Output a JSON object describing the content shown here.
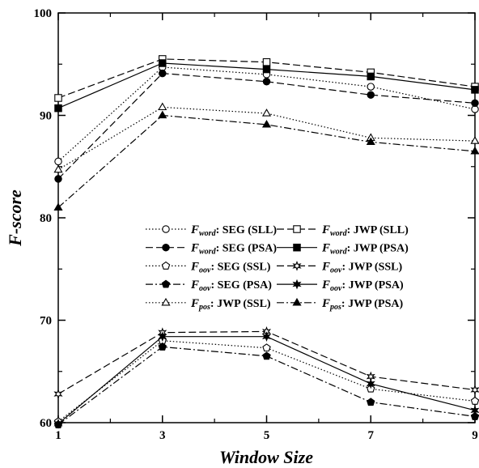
{
  "chart_data": {
    "type": "line",
    "title": "",
    "xlabel": "Window Size",
    "ylabel": "F-score",
    "x": [
      1,
      3,
      5,
      7,
      9
    ],
    "xticks": [
      "1",
      "3",
      "5",
      "7",
      "9"
    ],
    "yticks": [
      "60",
      "70",
      "80",
      "90",
      "100"
    ],
    "xlim": [
      1,
      9
    ],
    "ylim": [
      60,
      100
    ],
    "grid": false,
    "legend_position": "center-right",
    "series": [
      {
        "name": "F_word: SEG (SLL)",
        "symbol": "F",
        "sub": "word",
        "suffix": ": SEG (SLL)",
        "marker": "circle-open",
        "dash": "dotted",
        "values": [
          85.5,
          94.7,
          94.0,
          92.8,
          90.6
        ]
      },
      {
        "name": "F_word: SEG (PSA)",
        "symbol": "F",
        "sub": "word",
        "suffix": ": SEG (PSA)",
        "marker": "circle-filled",
        "dash": "dashed",
        "values": [
          83.8,
          94.1,
          93.3,
          92.0,
          91.2
        ]
      },
      {
        "name": "F_oov: SEG (SSL)",
        "symbol": "F",
        "sub": "oov",
        "suffix": ": SEG (SSL)",
        "marker": "pentagon-open",
        "dash": "dotted",
        "values": [
          60.1,
          68.0,
          67.3,
          63.3,
          62.1
        ]
      },
      {
        "name": "F_oov: SEG (PSA)",
        "symbol": "F",
        "sub": "oov",
        "suffix": ": SEG (PSA)",
        "marker": "pentagon-filled",
        "dash": "dashdot",
        "values": [
          59.8,
          67.4,
          66.5,
          62.0,
          60.6
        ]
      },
      {
        "name": "F_word: JWP (SLL)",
        "symbol": "F",
        "sub": "word",
        "suffix": ": JWP (SLL)",
        "marker": "square-open",
        "dash": "dashed",
        "values": [
          91.7,
          95.5,
          95.2,
          94.2,
          92.8
        ]
      },
      {
        "name": "F_word: JWP (PSA)",
        "symbol": "F",
        "sub": "word",
        "suffix": ": JWP (PSA)",
        "marker": "square-filled",
        "dash": "solid",
        "values": [
          90.7,
          95.1,
          94.5,
          93.8,
          92.5
        ]
      },
      {
        "name": "F_oov: JWP (SSL)",
        "symbol": "F",
        "sub": "oov",
        "suffix": ": JWP (SSL)",
        "marker": "star-open",
        "dash": "dashed",
        "values": [
          62.8,
          68.8,
          68.9,
          64.5,
          63.2
        ]
      },
      {
        "name": "F_oov: JWP (PSA)",
        "symbol": "F",
        "sub": "oov",
        "suffix": ": JWP (PSA)",
        "marker": "star-filled",
        "dash": "solid",
        "values": [
          59.9,
          68.4,
          68.4,
          63.8,
          61.2
        ]
      },
      {
        "name": "F_pos: JWP (SSL)",
        "symbol": "F",
        "sub": "pos",
        "suffix": ": JWP (SSL)",
        "marker": "triangle-open",
        "dash": "dotted",
        "values": [
          84.7,
          90.8,
          90.2,
          87.8,
          87.5
        ]
      },
      {
        "name": "F_pos: JWP (PSA)",
        "symbol": "F",
        "sub": "pos",
        "suffix": ": JWP (PSA)",
        "marker": "triangle-filled",
        "dash": "dashdot",
        "values": [
          81.0,
          90.0,
          89.1,
          87.4,
          86.5
        ]
      }
    ],
    "legend_order": [
      0,
      4,
      1,
      5,
      2,
      6,
      3,
      7,
      8,
      9
    ]
  }
}
